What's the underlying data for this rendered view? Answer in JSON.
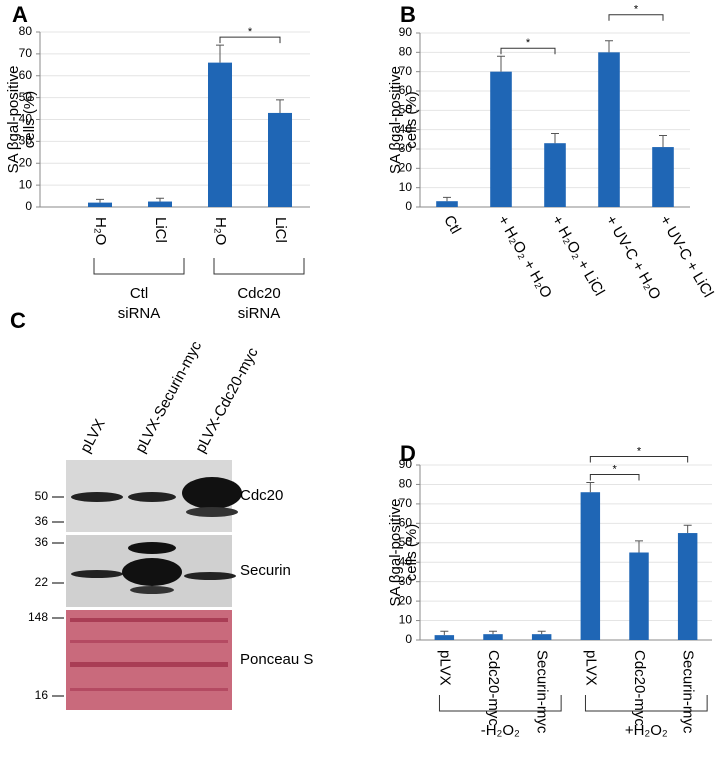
{
  "chart_data": [
    {
      "type": "bar",
      "panel": "A",
      "ylabel": [
        "SA βgal-positive",
        "cells (%)"
      ],
      "categories": [
        "H₂O",
        "LiCl",
        "H₂O",
        "LiCl"
      ],
      "values": [
        2,
        2.5,
        66,
        43
      ],
      "errors": [
        1.5,
        1.5,
        8,
        6
      ],
      "color": "#1f66b5",
      "ylim": [
        0,
        80
      ],
      "yticks": [
        0,
        10,
        20,
        30,
        40,
        50,
        60,
        70,
        80
      ],
      "grid": true,
      "significance": [
        {
          "label": "*",
          "between": [
            2,
            3
          ]
        }
      ],
      "groups": [
        {
          "label": [
            "Ctl",
            "siRNA"
          ],
          "categories": [
            0,
            1
          ]
        },
        {
          "label": [
            "Cdc20",
            "siRNA"
          ],
          "categories": [
            2,
            3
          ]
        }
      ]
    },
    {
      "type": "bar",
      "panel": "B",
      "ylabel": [
        "SA βgal-positive",
        "cells (%)"
      ],
      "categories": [
        "Ctl",
        "+ H₂O₂ + H₂O",
        "+ H₂O₂ + LiCl",
        "+ UV-C + H₂O",
        "+ UV-C + LiCl"
      ],
      "values": [
        3,
        70,
        33,
        80,
        31
      ],
      "errors": [
        2,
        8,
        5,
        6,
        6
      ],
      "color": "#1f66b5",
      "ylim": [
        0,
        90
      ],
      "yticks": [
        0,
        10,
        20,
        30,
        40,
        50,
        60,
        70,
        80,
        90
      ],
      "grid": true,
      "significance": [
        {
          "label": "*",
          "between": [
            1,
            2
          ]
        },
        {
          "label": "*",
          "between": [
            3,
            4
          ]
        }
      ]
    },
    {
      "type": "bar",
      "panel": "D",
      "ylabel": [
        "SA βgal-positive",
        "cells (%)"
      ],
      "categories": [
        "pLVX",
        "Cdc20-myc",
        "Securin-myc",
        "pLVX",
        "Cdc20-myc",
        "Securin-myc"
      ],
      "values": [
        2.5,
        3,
        3,
        76,
        45,
        55
      ],
      "errors": [
        2,
        1.5,
        1.5,
        5,
        6,
        4
      ],
      "color": "#1f66b5",
      "ylim": [
        0,
        90
      ],
      "yticks": [
        0,
        10,
        20,
        30,
        40,
        50,
        60,
        70,
        80,
        90
      ],
      "grid": true,
      "significance": [
        {
          "label": "*",
          "between": [
            3,
            4
          ]
        },
        {
          "label": "*",
          "between": [
            3,
            5
          ]
        }
      ],
      "groups": [
        {
          "label": [
            "-H₂O₂"
          ],
          "categories": [
            0,
            2
          ]
        },
        {
          "label": [
            "+H₂O₂"
          ],
          "categories": [
            3,
            5
          ]
        }
      ]
    }
  ],
  "blot": {
    "panel": "C",
    "lanes": [
      "pLVX",
      "pLVX-Securin-myc",
      "pLVX-Cdc20-myc"
    ],
    "rows": [
      {
        "label": "Cdc20",
        "markers": [
          "50",
          "36"
        ]
      },
      {
        "label": "Securin",
        "markers": [
          "36",
          "22"
        ]
      },
      {
        "label": "Ponceau S",
        "markers": [
          "148",
          "16"
        ]
      }
    ]
  }
}
